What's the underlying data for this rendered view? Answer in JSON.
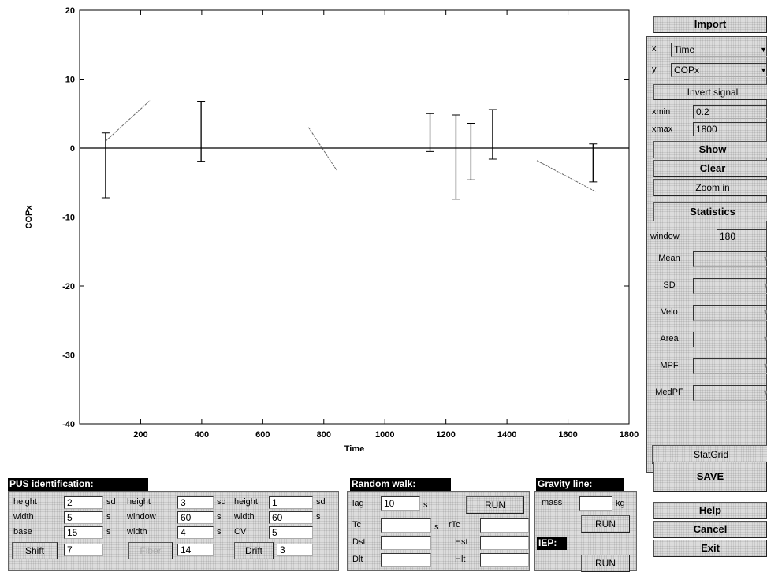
{
  "chart_data": {
    "type": "line",
    "xlabel": "Time",
    "ylabel": "COPx",
    "xlim": [
      0,
      1800
    ],
    "ylim": [
      -40,
      20
    ],
    "x_ticks": [
      "200",
      "400",
      "600",
      "800",
      "1000",
      "1200",
      "1400",
      "1600",
      "1800"
    ],
    "y_ticks": [
      "20",
      "10",
      "0",
      "-10",
      "-20",
      "-30",
      "-40"
    ],
    "vertical_bars": [
      {
        "x": 85,
        "y1": -7.2,
        "y2": 2.2
      },
      {
        "x": 398,
        "y1": -1.9,
        "y2": 6.8
      },
      {
        "x": 1148,
        "y1": -0.5,
        "y2": 5.0
      },
      {
        "x": 1233,
        "y1": -7.4,
        "y2": 4.8
      },
      {
        "x": 1282,
        "y1": -4.6,
        "y2": 3.6
      },
      {
        "x": 1353,
        "y1": -1.6,
        "y2": 5.6
      },
      {
        "x": 1682,
        "y1": -4.9,
        "y2": 0.6
      }
    ],
    "trend_lines": [
      {
        "x": [
          85,
          230
        ],
        "y": [
          1.0,
          6.9
        ]
      },
      {
        "x": [
          750,
          842
        ],
        "y": [
          3.0,
          -3.2
        ]
      },
      {
        "x": [
          1498,
          1690
        ],
        "y": [
          -1.8,
          -6.3
        ]
      }
    ],
    "zero_line": 0
  },
  "side": {
    "import_label": "Import",
    "x_label": "x",
    "x_value": "Time",
    "y_label": "y",
    "y_value": "COPx",
    "invert_label": "Invert signal",
    "xmin_label": "xmin",
    "xmin_value": "0.2",
    "xmax_label": "xmax",
    "xmax_value": "1800",
    "show_label": "Show",
    "clear_label": "Clear",
    "zoom_label": "Zoom in",
    "statistics_label": "Statistics",
    "window_label": "window",
    "window_value": "180",
    "stats": [
      "Mean",
      "SD",
      "Velo",
      "Area",
      "MPF",
      "MedPF"
    ],
    "statgrid_label": "StatGrid",
    "save_label": "SAVE",
    "help_label": "Help",
    "cancel_label": "Cancel",
    "exit_label": "Exit"
  },
  "pus": {
    "title": "PUS identification:",
    "shift": {
      "height_label": "height",
      "height_value": "2",
      "height_unit": "sd",
      "width_label": "width",
      "width_value": "5",
      "width_unit": "s",
      "base_label": "base",
      "base_value": "15",
      "base_unit": "s",
      "button_label": "Shift",
      "button_value": "7"
    },
    "fiber": {
      "height_label": "height",
      "height_value": "3",
      "height_unit": "sd",
      "window_label": "window",
      "window_value": "60",
      "window_unit": "s",
      "width_label": "width",
      "width_value": "4",
      "width_unit": "s",
      "button_label": "Fiber",
      "button_value": "14"
    },
    "drift": {
      "height_label": "height",
      "height_value": "1",
      "height_unit": "sd",
      "width_label": "width",
      "width_value": "60",
      "width_unit": "s",
      "cv_label": "CV",
      "cv_value": "5",
      "button_label": "Drift",
      "button_value": "3"
    }
  },
  "random_walk": {
    "title": "Random walk:",
    "lag_label": "lag",
    "lag_value": "10",
    "lag_unit": "s",
    "run_label": "RUN",
    "tc_label": "Tc",
    "tc_unit": "s",
    "rtc_label": "rTc",
    "dst_label": "Dst",
    "hst_label": "Hst",
    "dlt_label": "Dlt",
    "hlt_label": "Hlt"
  },
  "gravity": {
    "title": "Gravity line:",
    "mass_label": "mass",
    "mass_unit": "kg",
    "run_label": "RUN",
    "iep_title": "IEP:",
    "iep_run_label": "RUN"
  }
}
